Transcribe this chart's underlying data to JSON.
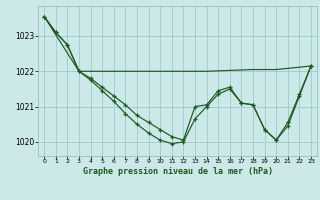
{
  "title": "Graphe pression niveau de la mer (hPa)",
  "bg_color": "#cce8e8",
  "grid_color": "#99cccc",
  "line_color": "#1a5c1a",
  "marker_color": "#1a5c1a",
  "xlim": [
    -0.5,
    23.5
  ],
  "ylim": [
    1019.6,
    1023.85
  ],
  "yticks": [
    1020,
    1021,
    1022,
    1023
  ],
  "xticks": [
    0,
    1,
    2,
    3,
    4,
    5,
    6,
    7,
    8,
    9,
    10,
    11,
    12,
    13,
    14,
    15,
    16,
    17,
    18,
    19,
    20,
    21,
    22,
    23
  ],
  "series1": {
    "x": [
      0,
      1,
      2,
      3,
      4,
      5,
      6,
      7,
      8,
      9,
      10,
      11,
      12,
      13,
      14,
      15,
      16,
      17,
      18,
      19,
      20,
      21,
      22,
      23
    ],
    "y": [
      1023.55,
      1023.1,
      1022.75,
      1022.0,
      1021.8,
      1021.55,
      1021.3,
      1021.05,
      1020.75,
      1020.55,
      1020.35,
      1020.15,
      1020.05,
      1021.0,
      1021.05,
      1021.45,
      1021.55,
      1021.1,
      1021.05,
      1020.35,
      1020.05,
      1020.55,
      1021.35,
      1022.15
    ]
  },
  "series2": {
    "x": [
      0,
      1,
      2,
      3,
      4,
      5,
      6,
      7,
      8,
      9,
      10,
      11,
      12,
      13,
      14,
      15,
      16,
      17,
      18,
      19,
      20,
      21,
      22,
      23
    ],
    "y": [
      1023.55,
      1023.1,
      1022.75,
      1022.0,
      1021.75,
      1021.45,
      1021.15,
      1020.8,
      1020.5,
      1020.25,
      1020.05,
      1019.95,
      1020.0,
      1020.65,
      1021.0,
      1021.35,
      1021.5,
      1021.1,
      1021.05,
      1020.35,
      1020.05,
      1020.45,
      1021.3,
      1022.15
    ]
  },
  "series3": {
    "x": [
      0,
      3,
      11,
      14,
      18,
      19,
      20,
      23
    ],
    "y": [
      1023.55,
      1022.0,
      1022.0,
      1022.0,
      1022.05,
      1022.05,
      1022.05,
      1022.15
    ]
  }
}
